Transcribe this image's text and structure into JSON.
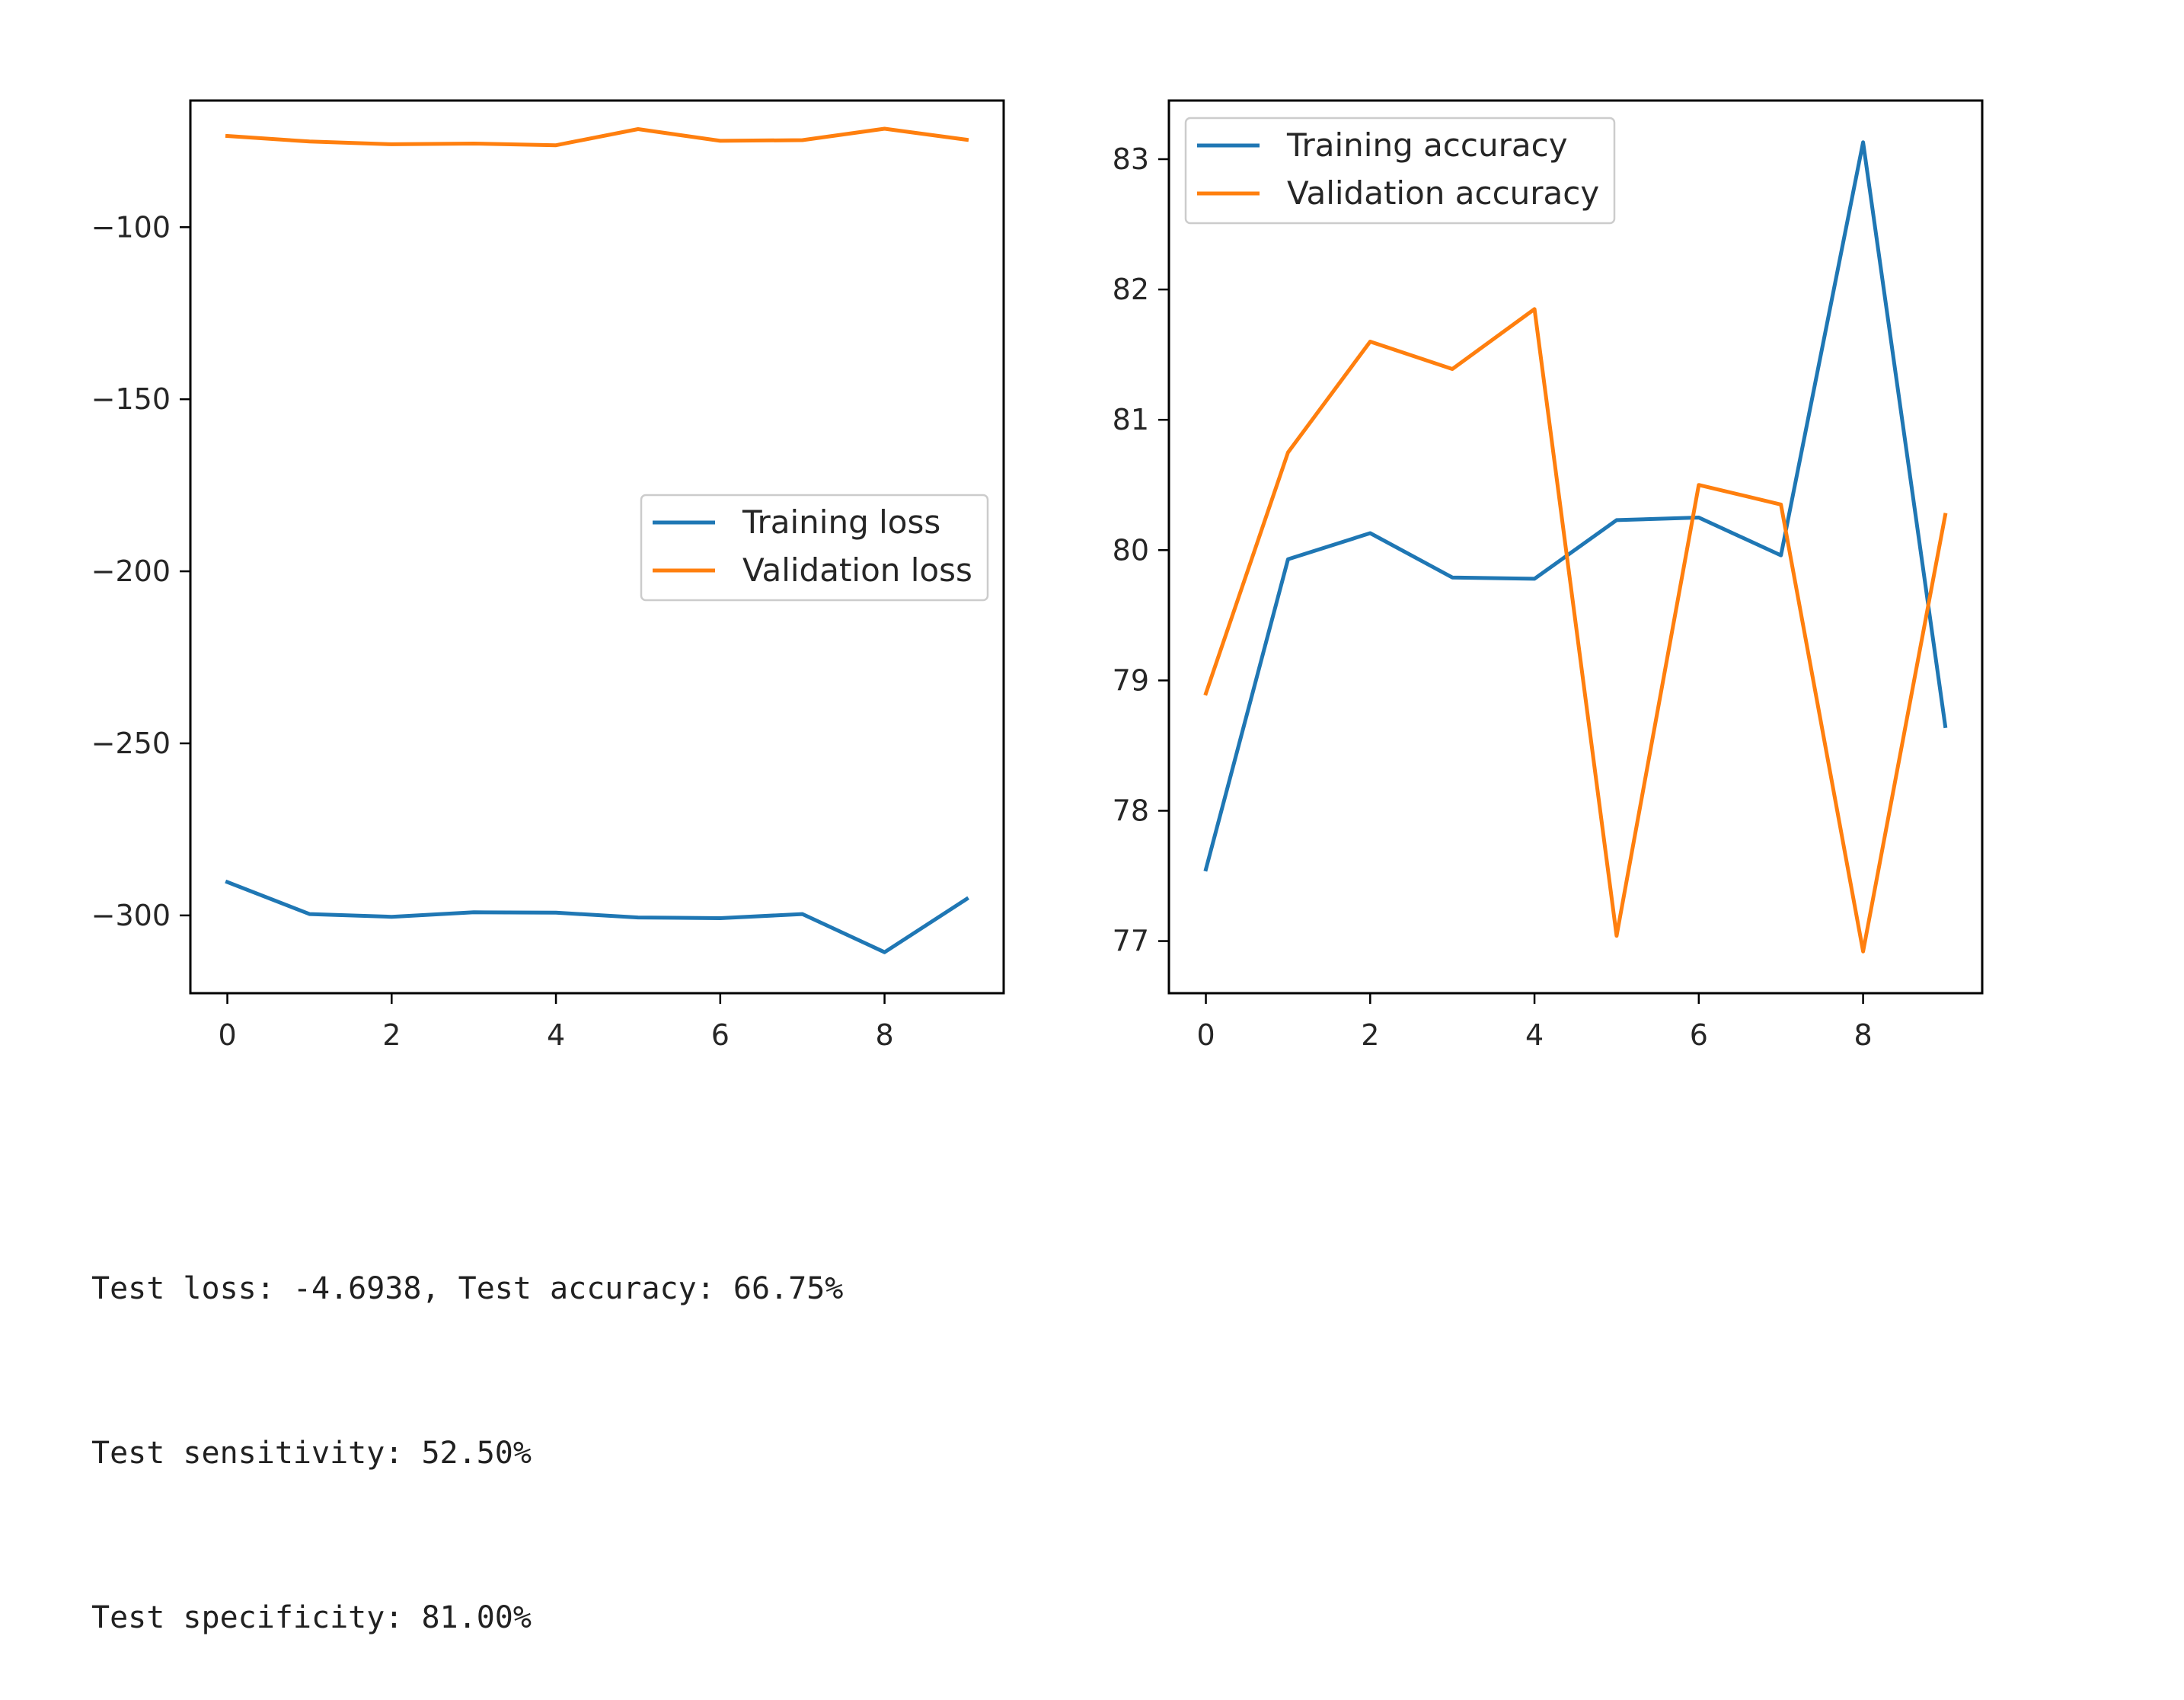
{
  "chart_data": [
    {
      "type": "line",
      "title": "",
      "xlabel": "",
      "ylabel": "",
      "x": [
        0,
        1,
        2,
        3,
        4,
        5,
        6,
        7,
        8,
        9
      ],
      "xticks": [
        0,
        2,
        4,
        6,
        8
      ],
      "xlim": [
        -0.45,
        9.45
      ],
      "yticks": [
        -100,
        -150,
        -200,
        -250,
        -300
      ],
      "ylim": [
        -322.6,
        -63.2
      ],
      "grid": false,
      "legend_placement": "center-right",
      "series": [
        {
          "name": "Training loss",
          "color": "#1f77b4",
          "values": [
            -290.3,
            -299.6,
            -300.4,
            -299.1,
            -299.2,
            -300.6,
            -300.8,
            -299.6,
            -310.7,
            -295.2
          ]
        },
        {
          "name": "Validation loss",
          "color": "#ff7f0e",
          "values": [
            -73.5,
            -75.1,
            -75.9,
            -75.7,
            -76.2,
            -71.5,
            -74.9,
            -74.7,
            -71.4,
            -74.6
          ]
        }
      ]
    },
    {
      "type": "line",
      "title": "",
      "xlabel": "",
      "ylabel": "",
      "x": [
        0,
        1,
        2,
        3,
        4,
        5,
        6,
        7,
        8,
        9
      ],
      "xticks": [
        0,
        2,
        4,
        6,
        8
      ],
      "xlim": [
        -0.45,
        9.45
      ],
      "yticks": [
        77,
        78,
        79,
        80,
        81,
        82,
        83
      ],
      "ylim": [
        76.6,
        83.45
      ],
      "grid": false,
      "legend_placement": "upper-left",
      "series": [
        {
          "name": "Training accuracy",
          "color": "#1f77b4",
          "values": [
            77.55,
            79.93,
            80.13,
            79.79,
            79.78,
            80.23,
            80.25,
            79.96,
            83.13,
            78.65
          ]
        },
        {
          "name": "Validation accuracy",
          "color": "#ff7f0e",
          "values": [
            78.9,
            80.75,
            81.6,
            81.39,
            81.85,
            77.04,
            80.5,
            80.35,
            76.92,
            80.27
          ]
        }
      ]
    }
  ],
  "output": {
    "lines": [
      "Test loss: -4.6938, Test accuracy: 66.75%",
      "Test sensitivity: 52.50%",
      "Test specificity: 81.00%"
    ]
  }
}
